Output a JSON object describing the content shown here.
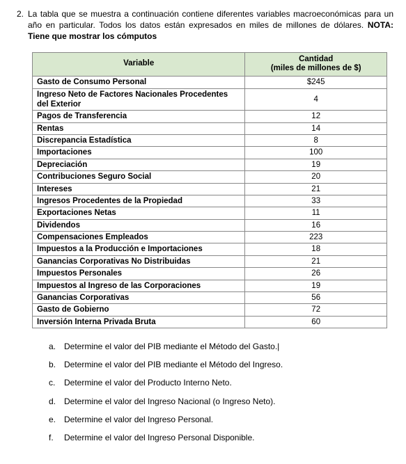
{
  "question": {
    "number": "2.",
    "intro_part1": "La tabla que se muestra a continuación contiene diferentes variables macroeconómicas para un año en particular. Todos los datos están expresados en miles de millones de dólares. ",
    "intro_bold": "NOTA: Tiene que mostrar los cómputos"
  },
  "table": {
    "header_variable": "Variable",
    "header_qty_line1": "Cantidad",
    "header_qty_line2": "(miles de millones de $)",
    "colors": {
      "header_bg": "#d9e8cf",
      "border": "#888888"
    },
    "rows": [
      {
        "variable": "Gasto de Consumo Personal",
        "value": "$245"
      },
      {
        "variable": "Ingreso Neto de Factores Nacionales Procedentes del Exterior",
        "value": "4"
      },
      {
        "variable": "Pagos de Transferencia",
        "value": "12"
      },
      {
        "variable": "Rentas",
        "value": "14"
      },
      {
        "variable": "Discrepancia Estadística",
        "value": "8"
      },
      {
        "variable": "Importaciones",
        "value": "100"
      },
      {
        "variable": "Depreciación",
        "value": "19"
      },
      {
        "variable": "Contribuciones Seguro Social",
        "value": "20"
      },
      {
        "variable": "Intereses",
        "value": "21"
      },
      {
        "variable": "Ingresos Procedentes de la Propiedad",
        "value": "33"
      },
      {
        "variable": "Exportaciones Netas",
        "value": "11"
      },
      {
        "variable": "Dividendos",
        "value": "16"
      },
      {
        "variable": "Compensaciones Empleados",
        "value": "223"
      },
      {
        "variable": "Impuestos a la Producción e Importaciones",
        "value": "18"
      },
      {
        "variable": "Ganancias Corporativas No Distribuidas",
        "value": "21"
      },
      {
        "variable": "Impuestos Personales",
        "value": "26"
      },
      {
        "variable": "Impuestos al Ingreso de las Corporaciones",
        "value": "19"
      },
      {
        "variable": "Ganancias Corporativas",
        "value": "56"
      },
      {
        "variable": "Gasto de Gobierno",
        "value": "72"
      },
      {
        "variable": "Inversión Interna Privada Bruta",
        "value": "60"
      }
    ]
  },
  "subquestions": [
    {
      "letter": "a.",
      "text": "Determine el valor del PIB mediante el Método del Gasto.",
      "cursor": true
    },
    {
      "letter": "b.",
      "text": "Determine el valor del PIB mediante el Método del Ingreso.",
      "cursor": false
    },
    {
      "letter": "c.",
      "text": "Determine el valor del Producto Interno Neto.",
      "cursor": false
    },
    {
      "letter": "d.",
      "text": "Determine el valor del Ingreso Nacional (o Ingreso Neto).",
      "cursor": false
    },
    {
      "letter": "e.",
      "text": "Determine el valor del Ingreso Personal.",
      "cursor": false
    },
    {
      "letter": "f.",
      "text": "Determine el valor del Ingreso Personal Disponible.",
      "cursor": false
    }
  ]
}
